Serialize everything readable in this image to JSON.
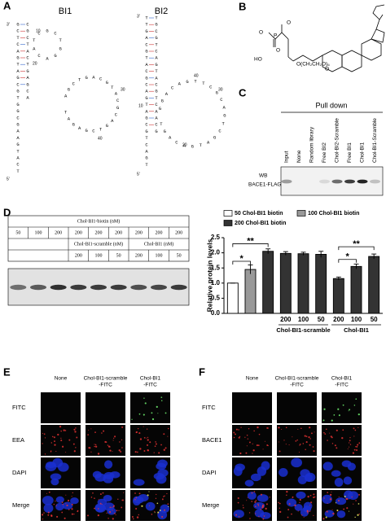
{
  "panel_a": {
    "label": "A",
    "bi1": {
      "title": "BI1",
      "segments": [
        "GCTCAGTAGCGTGGCGAAGTACT",
        "CGCTACTGAGCA",
        "ATCGCTGGAC",
        "AGCTGACGTACGCAGTCGAGAT"
      ],
      "numbers": [
        "10",
        "20",
        "30",
        "40",
        "5'",
        "3'"
      ]
    },
    "bi2": {
      "title": "BI2",
      "segments": [
        "TTGACGTACGCAGTAGCGTCAGT",
        "TGCGTCAGTACGTCAACG",
        "GGACAGTTCGCAGTCGATGACAGT"
      ],
      "numbers": [
        "10",
        "20",
        "30",
        "40",
        "5'",
        "3'"
      ]
    }
  },
  "panel_b": {
    "label": "B",
    "atoms": [
      "O",
      "P",
      "O",
      "HO",
      "O(CH₂CH₂O)₆",
      "O",
      "O"
    ]
  },
  "panel_c": {
    "label": "C",
    "header": "Pull down",
    "lanes": [
      "Input",
      "None",
      "Random library",
      "Free BI2",
      "Chol-BI2-Scramble",
      "Free BI1",
      "Chol-BI1",
      "Chol-BI1-Scramble"
    ],
    "blot_labels": [
      "WB",
      "BACE1-FLAG"
    ]
  },
  "panel_d": {
    "label": "D",
    "table": {
      "title": "Chol-BI1-biotin (nM)",
      "biotin": [
        50,
        100,
        200,
        200,
        200,
        200,
        200,
        200,
        200
      ],
      "groups": [
        "Chol-BI1-scramble (nM)",
        "Chol-BI1 (nM)"
      ],
      "doses": [
        200,
        100,
        50,
        200,
        100,
        50
      ]
    },
    "chart_data": {
      "type": "bar",
      "y_label": "Relative protein levels",
      "ylim": [
        0,
        2.5
      ],
      "yticks": [
        {
          "value": 0,
          "label": "0.0"
        },
        {
          "value": 0.5,
          "label": "0.5"
        },
        {
          "value": 1,
          "label": "1.0"
        },
        {
          "value": 1.5,
          "label": "1.5"
        },
        {
          "value": 2,
          "label": "2.0"
        },
        {
          "value": 2.5,
          "label": "2.5"
        }
      ],
      "legend": [
        {
          "name": "50 Chol-BI1 biotin",
          "color": "#ffffff"
        },
        {
          "name": "100 Chol-BI1 biotin",
          "color": "#999999"
        },
        {
          "name": "200 Chol-BI1 biotin",
          "color": "#333333"
        }
      ],
      "categories": [
        null,
        null,
        null,
        "200",
        "100",
        "50",
        "200",
        "100",
        "50"
      ],
      "values": [
        1.0,
        1.45,
        2.05,
        1.98,
        1.97,
        1.95,
        1.15,
        1.55,
        1.88
      ],
      "errors": [
        0,
        0.15,
        0.08,
        0.06,
        0.05,
        0.1,
        0.05,
        0.08,
        0.08
      ],
      "colors": [
        "#ffffff",
        "#999999",
        "#333333",
        "#333333",
        "#333333",
        "#333333",
        "#333333",
        "#333333",
        "#333333"
      ],
      "groups": [
        "Chol-BI1-scramble",
        "Chol-BI1"
      ],
      "annotations": [
        "*",
        "**",
        "*",
        "**"
      ]
    }
  },
  "panel_e": {
    "label": "E",
    "columns": [
      [
        "None"
      ],
      [
        "Chol-BI1-scramble",
        "-FITC"
      ],
      [
        "Chol-BI1",
        "-FITC"
      ]
    ],
    "rows": [
      "FITC",
      "EEA",
      "DAPI",
      "Merge"
    ]
  },
  "panel_f": {
    "label": "F",
    "columns": [
      [
        "None"
      ],
      [
        "Chol-BI1-scramble",
        "-FITC"
      ],
      [
        "Chol-BI1",
        "-FITC"
      ]
    ],
    "rows": [
      "FITC",
      "BACE1",
      "DAPI",
      "Merge"
    ]
  }
}
